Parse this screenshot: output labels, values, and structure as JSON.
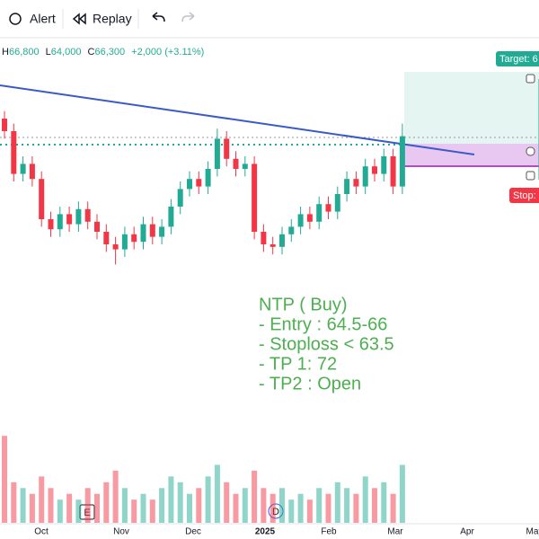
{
  "toolbar": {
    "alert": "Alert",
    "replay": "Replay"
  },
  "ohlc": {
    "high_label": "H",
    "high": "66,800",
    "low_label": "L",
    "low": "64,000",
    "close_label": "C",
    "close": "66,300",
    "change": "+2,000 (+3.11%)"
  },
  "chart_data": {
    "type": "candlestick",
    "up_color": "#22ab94",
    "down_color": "#f23645",
    "ylim": [
      61000,
      68500
    ],
    "volume_ylim": [
      0,
      2.2
    ],
    "open": [
      67000,
      66500,
      64800,
      65200,
      64600,
      63000,
      62600,
      63200,
      62800,
      63400,
      62900,
      62500,
      62000,
      61800,
      62400,
      62100,
      62800,
      62300,
      62700,
      63500,
      64200,
      64600,
      64300,
      65000,
      66200,
      65400,
      65000,
      65200,
      62500,
      62000,
      61900,
      62400,
      62700,
      63200,
      62900,
      63600,
      63300,
      64000,
      64600,
      64300,
      65100,
      64800,
      65500,
      64300
    ],
    "high": [
      67300,
      66800,
      65500,
      65500,
      64900,
      63300,
      63500,
      63500,
      63700,
      63700,
      63200,
      62800,
      62300,
      62700,
      62700,
      63100,
      63100,
      63000,
      63800,
      64500,
      64900,
      64900,
      65300,
      66600,
      66500,
      65700,
      65500,
      65500,
      62800,
      62300,
      62700,
      63000,
      63500,
      63500,
      63900,
      63900,
      64300,
      64900,
      64900,
      65400,
      65400,
      65800,
      65800,
      66800
    ],
    "low": [
      66200,
      64500,
      64500,
      64300,
      62700,
      62300,
      62300,
      62500,
      62500,
      62600,
      62200,
      61700,
      61200,
      61500,
      61800,
      61800,
      62000,
      62000,
      62400,
      63200,
      63900,
      64000,
      64000,
      64700,
      65100,
      64700,
      64700,
      62200,
      61700,
      61600,
      61600,
      62100,
      62400,
      62600,
      62600,
      63000,
      63000,
      63700,
      64000,
      64000,
      64500,
      64500,
      64000,
      64000
    ],
    "close": [
      66500,
      64800,
      65200,
      64600,
      63000,
      62600,
      63200,
      62800,
      63400,
      62900,
      62500,
      62000,
      61800,
      62400,
      62100,
      62800,
      62300,
      62700,
      63500,
      64200,
      64600,
      64300,
      65000,
      66200,
      65400,
      65000,
      65200,
      62500,
      62000,
      61900,
      62400,
      62700,
      63200,
      62900,
      63600,
      63300,
      64000,
      64600,
      64300,
      65100,
      64800,
      65500,
      64300,
      66300
    ],
    "volume": [
      1.5,
      0.7,
      0.6,
      0.5,
      0.8,
      0.6,
      0.4,
      0.5,
      0.4,
      0.6,
      0.5,
      0.7,
      0.9,
      0.6,
      0.4,
      0.5,
      0.4,
      0.6,
      0.8,
      0.7,
      0.5,
      0.6,
      0.8,
      1.0,
      0.7,
      0.5,
      0.6,
      0.9,
      0.6,
      0.5,
      0.6,
      0.4,
      0.5,
      0.4,
      0.6,
      0.5,
      0.7,
      0.6,
      0.5,
      0.8,
      0.6,
      0.7,
      0.5,
      1.0
    ],
    "x_labels": [
      "Oct",
      "Nov",
      "Dec",
      "2025",
      "Feb",
      "Mar",
      "Apr",
      "May"
    ]
  },
  "events": {
    "earnings": "E",
    "dividend": "D"
  },
  "position": {
    "target": "Target: 6",
    "stop": "Stop: "
  },
  "annotation": [
    "NTP ( Buy)",
    "- Entry : 64.5-66",
    "- Stoploss < 63.5",
    "- TP 1: 72",
    "- TP2 : Open"
  ]
}
